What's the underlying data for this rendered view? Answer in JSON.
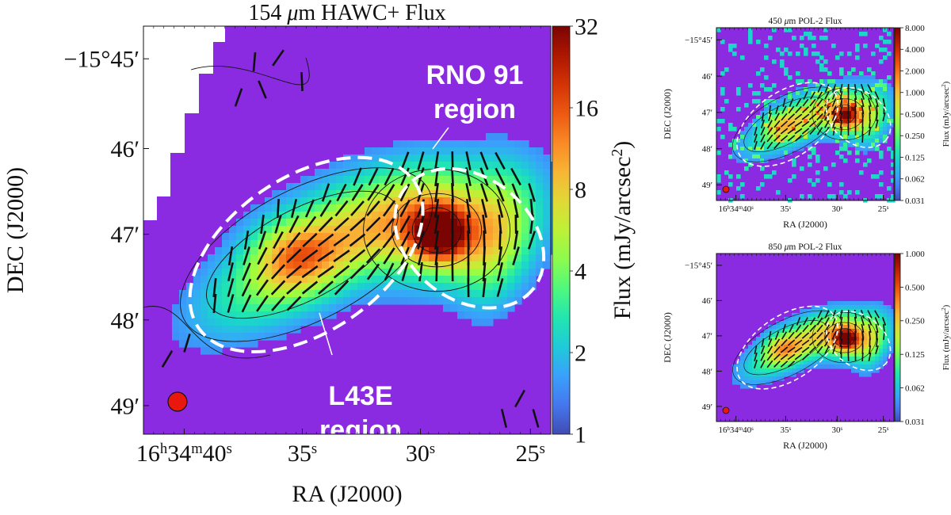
{
  "colors": {
    "background": "#8A2BE2",
    "contour": "#111111",
    "vectors": "#111111",
    "regions": "#ffffff",
    "beam": "#e8180e",
    "colormap": [
      "#30123b",
      "#4145ab",
      "#4675ed",
      "#39a2fc",
      "#1bcfd4",
      "#24eca6",
      "#61fc6c",
      "#a4fc3b",
      "#d1e834",
      "#f3c63a",
      "#fe9b2d",
      "#f36315",
      "#d93806",
      "#b11901",
      "#7a0402"
    ]
  },
  "chart_data": [
    {
      "type": "heatmap",
      "id": "hawc",
      "title": "154 μm HAWC+ Flux",
      "xlabel": "RA (J2000)",
      "ylabel": "DEC (J2000)",
      "colorbar_label": "Flux (mJy/arcsec2)",
      "colorbar_scale": "log",
      "colorbar_range": [
        1,
        32
      ],
      "colorbar_ticks": [
        "32",
        "16",
        "8",
        "4",
        "2",
        "1"
      ],
      "x_ticks": [
        {
          "base": "16",
          "parts": [
            [
              "h",
              "34"
            ],
            [
              "m",
              "40"
            ],
            [
              "s",
              ""
            ]
          ],
          "value": "16h34m40s"
        },
        {
          "base": "35",
          "parts": [
            [
              "s",
              ""
            ]
          ],
          "value": "35s"
        },
        {
          "base": "30",
          "parts": [
            [
              "s",
              ""
            ]
          ],
          "value": "30s"
        },
        {
          "base": "25",
          "parts": [
            [
              "s",
              ""
            ]
          ],
          "value": "25s"
        }
      ],
      "y_ticks": [
        "−15°45′",
        "46′",
        "47′",
        "48′",
        "49′"
      ],
      "peaks": [
        {
          "name": "RNO 91",
          "ra": "16h34m29.5s",
          "dec": "-15°47′10″",
          "flux": 32
        },
        {
          "name": "L43E",
          "ra": "16h34m35s",
          "dec": "-15°47′20″",
          "flux": 6
        }
      ],
      "regions": [
        {
          "label_line1": "RNO 91",
          "label_line2": "region"
        },
        {
          "label_line1": "L43E",
          "label_line2": "region"
        }
      ]
    },
    {
      "type": "heatmap",
      "id": "pol450",
      "title": "450 μm POL-2 Flux",
      "xlabel": "RA (J2000)",
      "ylabel": "DEC (J2000)",
      "colorbar_label": "Flux (mJy/arcsec2)",
      "colorbar_scale": "log",
      "colorbar_range": [
        0.031,
        8.0
      ],
      "colorbar_ticks": [
        "8.000",
        "4.000",
        "2.000",
        "1.000",
        "0.500",
        "0.250",
        "0.125",
        "0.062",
        "0.031"
      ],
      "x_ticks": [
        {
          "base": "16",
          "parts": [
            [
              "h",
              "34"
            ],
            [
              "m",
              "40"
            ],
            [
              "s",
              ""
            ]
          ],
          "value": "16h34m40s"
        },
        {
          "base": "35",
          "parts": [
            [
              "s",
              ""
            ]
          ],
          "value": "35s"
        },
        {
          "base": "30",
          "parts": [
            [
              "s",
              ""
            ]
          ],
          "value": "30s"
        },
        {
          "base": "25",
          "parts": [
            [
              "s",
              ""
            ]
          ],
          "value": "25s"
        }
      ],
      "y_ticks": [
        "−15°45′",
        "46′",
        "47′",
        "48′",
        "49′"
      ]
    },
    {
      "type": "heatmap",
      "id": "pol850",
      "title": "850 μm POL-2 Flux",
      "xlabel": "RA (J2000)",
      "ylabel": "DEC (J2000)",
      "colorbar_label": "Flux (mJy/arcsec2)",
      "colorbar_scale": "log",
      "colorbar_range": [
        0.031,
        1.0
      ],
      "colorbar_ticks": [
        "1.000",
        "0.500",
        "0.250",
        "0.125",
        "0.062",
        "0.031"
      ],
      "x_ticks": [
        {
          "base": "16",
          "parts": [
            [
              "h",
              "34"
            ],
            [
              "m",
              "40"
            ],
            [
              "s",
              ""
            ]
          ],
          "value": "16h34m40s"
        },
        {
          "base": "35",
          "parts": [
            [
              "s",
              ""
            ]
          ],
          "value": "35s"
        },
        {
          "base": "30",
          "parts": [
            [
              "s",
              ""
            ]
          ],
          "value": "30s"
        },
        {
          "base": "25",
          "parts": [
            [
              "s",
              ""
            ]
          ],
          "value": "25s"
        }
      ],
      "y_ticks": [
        "−15°45′",
        "46′",
        "47′",
        "48′",
        "49′"
      ]
    }
  ]
}
